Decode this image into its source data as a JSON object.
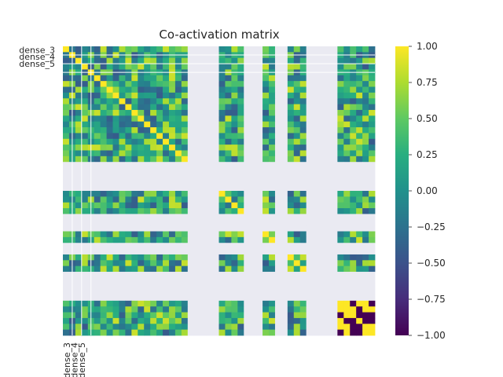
{
  "chart_data": {
    "type": "heatmap",
    "title": "Co-activation matrix",
    "n": 50,
    "tick_labels": [
      "dense_3",
      "dense_4",
      "dense_5"
    ],
    "colormap": "viridis",
    "missing_color": "#eaeaf2",
    "missing_indices": [
      20,
      21,
      22,
      23,
      24,
      29,
      30,
      31,
      34,
      35,
      39,
      40,
      41,
      42,
      43
    ],
    "colorbar": {
      "range": [
        -1.0,
        1.0
      ],
      "ticks": [
        "1.00",
        "0.75",
        "0.50",
        "0.25",
        "0.00",
        "−0.25",
        "−0.50",
        "−0.75",
        "−1.00"
      ]
    },
    "values_note": "approximate co-activation values, read from the image"
  }
}
